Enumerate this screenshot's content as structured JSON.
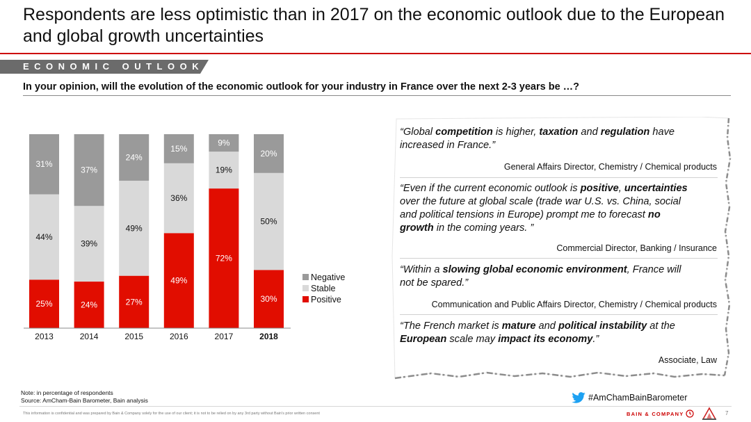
{
  "title": "Respondents are less optimistic than in 2017 on the economic outlook due to the European and global growth uncertainties",
  "section_label": "ECONOMIC OUTLOOK",
  "question": "In your opinion, will the evolution of the economic outlook for your industry in France over the next 2-3 years be …?",
  "chart_data": {
    "type": "bar",
    "stacked": true,
    "categories": [
      "2013",
      "2014",
      "2015",
      "2016",
      "2017",
      "2018"
    ],
    "highlighted_category": "2018",
    "series": [
      {
        "name": "Positive",
        "values": [
          25,
          24,
          27,
          49,
          72,
          30
        ],
        "color": "#e10d00"
      },
      {
        "name": "Stable",
        "values": [
          44,
          39,
          49,
          36,
          19,
          50
        ],
        "color": "#d9d9d9"
      },
      {
        "name": "Negative",
        "values": [
          31,
          37,
          24,
          15,
          9,
          20
        ],
        "color": "#9a9a9a"
      }
    ],
    "value_format": "{v}%",
    "ylim": [
      0,
      100
    ],
    "legend_position": "right",
    "legend_order": [
      "Negative",
      "Stable",
      "Positive"
    ]
  },
  "quotes": [
    {
      "text": "“Global competition is higher, taxation and regulation have\n increased in France.”",
      "attribution": "General Affairs Director, Chemistry / Chemical products"
    },
    {
      "text": "“Even if the current economic outlook is positive, uncertainties\n over the future at global scale (trade war U.S. vs. China, social\n and political tensions in Europe) prompt me to forecast no\n growth in the coming years. ”",
      "attribution": "Commercial Director, Banking / Insurance"
    },
    {
      "text": "“Within a slowing global economic environment, France will\n not be spared.”",
      "attribution": "Communication and Public Affairs Director, Chemistry / Chemical products"
    },
    {
      "text": "“The French market is mature and political instability at the\n European scale may impact its economy.”",
      "attribution": "Associate, Law"
    }
  ],
  "note": "Note: in percentage of respondents",
  "source": "Source: AmCham-Bain Barometer, Bain analysis",
  "hashtag": "#AmChamBainBarometer",
  "disclaimer": "This information is confidential and was prepared by Bain & Company solely for the use of our client; it is not to be relied on by any 3rd party without Bain's prior written consent",
  "brand": "BAIN & COMPANY",
  "page_number": "7",
  "colors": {
    "accent": "#cc0000",
    "section_bar": "#6b6b6b",
    "twitter": "#1da1f2"
  },
  "icons": {
    "twitter": "twitter-bird-icon",
    "seal": "bain-seal-icon",
    "amcham": "amcham-logo-icon"
  }
}
